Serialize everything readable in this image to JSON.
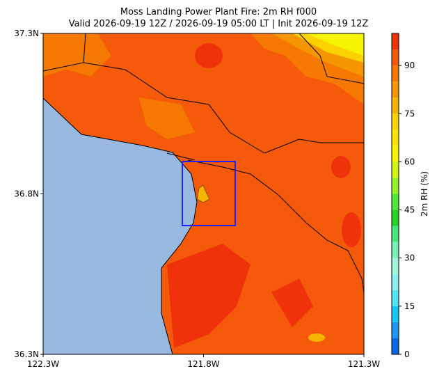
{
  "chart_data": {
    "type": "map",
    "title": "Moss Landing Power Plant Fire: 2m RH f000",
    "subtitle": "Valid 2026-09-19 12Z / 2026-09-19 05:00 LT | Init 2026-09-19 12Z",
    "xlim": [
      -122.3,
      -121.3
    ],
    "ylim": [
      36.3,
      37.3
    ],
    "xticks": [
      {
        "value": -122.3,
        "label": "122.3W"
      },
      {
        "value": -121.8,
        "label": "121.8W"
      },
      {
        "value": -121.3,
        "label": "121.3W"
      }
    ],
    "yticks": [
      {
        "value": 36.3,
        "label": "36.3N"
      },
      {
        "value": 36.8,
        "label": "36.8N"
      },
      {
        "value": 37.3,
        "label": "37.3N"
      }
    ],
    "colorbar": {
      "label": "2m RH (%)",
      "lim": [
        0,
        100
      ],
      "ticks": [
        0,
        15,
        30,
        45,
        60,
        75,
        90
      ],
      "levels": [
        0,
        5,
        10,
        15,
        20,
        25,
        30,
        35,
        40,
        45,
        50,
        55,
        60,
        65,
        70,
        75,
        80,
        85,
        90,
        95,
        100
      ],
      "colors": [
        "#0a64e6",
        "#1e96f5",
        "#14c8f5",
        "#50e6f5",
        "#8cf0f0",
        "#a0f5dc",
        "#78f0b4",
        "#46e678",
        "#28d228",
        "#50e63c",
        "#96f028",
        "#d2f514",
        "#f5f500",
        "#fae600",
        "#fad200",
        "#f5b400",
        "#f59600",
        "#f57800",
        "#f55a0a",
        "#f0320a"
      ]
    }
  }
}
